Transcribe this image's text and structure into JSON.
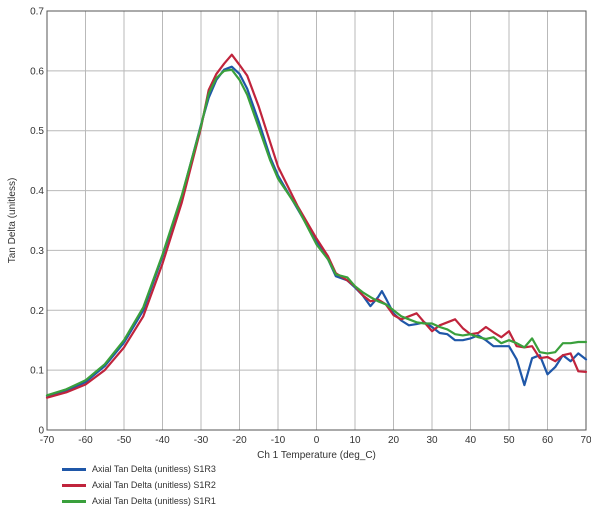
{
  "chart_data": {
    "type": "line",
    "title": "",
    "xlabel": "Ch 1 Temperature (deg_C)",
    "ylabel": "Tan Delta (unitless)",
    "xlim": [
      -70,
      70
    ],
    "ylim": [
      0,
      0.7
    ],
    "x_ticks": [
      "-70",
      "-60",
      "-50",
      "-40",
      "-30",
      "-20",
      "-10",
      "0",
      "10",
      "20",
      "30",
      "40",
      "50",
      "60",
      "70"
    ],
    "y_ticks": [
      "0",
      "0.1",
      "0.2",
      "0.3",
      "0.4",
      "0.5",
      "0.6",
      "0.7"
    ],
    "grid": true,
    "legend_position": "bottom-left",
    "series": [
      {
        "name": "Axial Tan Delta (unitless) S1R3",
        "color": "#1f57a8",
        "points": [
          [
            -70,
            0.057
          ],
          [
            -65,
            0.066
          ],
          [
            -60,
            0.08
          ],
          [
            -55,
            0.107
          ],
          [
            -50,
            0.146
          ],
          [
            -45,
            0.2
          ],
          [
            -40,
            0.29
          ],
          [
            -35,
            0.39
          ],
          [
            -30,
            0.51
          ],
          [
            -28,
            0.555
          ],
          [
            -26,
            0.585
          ],
          [
            -24,
            0.602
          ],
          [
            -22,
            0.607
          ],
          [
            -20,
            0.595
          ],
          [
            -18,
            0.57
          ],
          [
            -15,
            0.515
          ],
          [
            -12,
            0.455
          ],
          [
            -10,
            0.425
          ],
          [
            -5,
            0.37
          ],
          [
            0,
            0.315
          ],
          [
            3,
            0.285
          ],
          [
            5,
            0.257
          ],
          [
            8,
            0.25
          ],
          [
            10,
            0.238
          ],
          [
            12,
            0.225
          ],
          [
            14,
            0.207
          ],
          [
            16,
            0.222
          ],
          [
            17,
            0.232
          ],
          [
            18,
            0.22
          ],
          [
            20,
            0.195
          ],
          [
            22,
            0.183
          ],
          [
            24,
            0.175
          ],
          [
            26,
            0.177
          ],
          [
            28,
            0.18
          ],
          [
            30,
            0.172
          ],
          [
            32,
            0.162
          ],
          [
            34,
            0.16
          ],
          [
            36,
            0.15
          ],
          [
            38,
            0.15
          ],
          [
            40,
            0.153
          ],
          [
            42,
            0.158
          ],
          [
            44,
            0.15
          ],
          [
            46,
            0.14
          ],
          [
            48,
            0.14
          ],
          [
            50,
            0.14
          ],
          [
            52,
            0.118
          ],
          [
            54,
            0.075
          ],
          [
            56,
            0.12
          ],
          [
            58,
            0.125
          ],
          [
            60,
            0.093
          ],
          [
            62,
            0.105
          ],
          [
            64,
            0.125
          ],
          [
            66,
            0.115
          ],
          [
            68,
            0.128
          ],
          [
            70,
            0.118
          ]
        ]
      },
      {
        "name": "Axial Tan Delta (unitless) S1R2",
        "color": "#c0243c",
        "points": [
          [
            -70,
            0.054
          ],
          [
            -65,
            0.063
          ],
          [
            -60,
            0.076
          ],
          [
            -55,
            0.1
          ],
          [
            -50,
            0.138
          ],
          [
            -45,
            0.19
          ],
          [
            -40,
            0.278
          ],
          [
            -35,
            0.38
          ],
          [
            -30,
            0.505
          ],
          [
            -28,
            0.568
          ],
          [
            -26,
            0.595
          ],
          [
            -24,
            0.612
          ],
          [
            -22,
            0.627
          ],
          [
            -20,
            0.61
          ],
          [
            -18,
            0.592
          ],
          [
            -15,
            0.54
          ],
          [
            -12,
            0.48
          ],
          [
            -10,
            0.44
          ],
          [
            -5,
            0.375
          ],
          [
            0,
            0.32
          ],
          [
            3,
            0.29
          ],
          [
            5,
            0.262
          ],
          [
            8,
            0.25
          ],
          [
            10,
            0.24
          ],
          [
            12,
            0.225
          ],
          [
            14,
            0.215
          ],
          [
            16,
            0.218
          ],
          [
            18,
            0.21
          ],
          [
            20,
            0.192
          ],
          [
            22,
            0.185
          ],
          [
            24,
            0.19
          ],
          [
            26,
            0.195
          ],
          [
            28,
            0.18
          ],
          [
            30,
            0.165
          ],
          [
            32,
            0.175
          ],
          [
            34,
            0.18
          ],
          [
            36,
            0.185
          ],
          [
            38,
            0.17
          ],
          [
            40,
            0.16
          ],
          [
            42,
            0.162
          ],
          [
            44,
            0.172
          ],
          [
            46,
            0.163
          ],
          [
            48,
            0.155
          ],
          [
            50,
            0.165
          ],
          [
            52,
            0.14
          ],
          [
            54,
            0.138
          ],
          [
            56,
            0.14
          ],
          [
            58,
            0.12
          ],
          [
            60,
            0.122
          ],
          [
            62,
            0.115
          ],
          [
            64,
            0.125
          ],
          [
            66,
            0.128
          ],
          [
            68,
            0.098
          ],
          [
            70,
            0.097
          ]
        ]
      },
      {
        "name": "Axial Tan Delta (unitless) S1R1",
        "color": "#3aa03c",
        "points": [
          [
            -70,
            0.058
          ],
          [
            -65,
            0.068
          ],
          [
            -60,
            0.083
          ],
          [
            -55,
            0.11
          ],
          [
            -50,
            0.15
          ],
          [
            -45,
            0.205
          ],
          [
            -40,
            0.293
          ],
          [
            -35,
            0.392
          ],
          [
            -30,
            0.508
          ],
          [
            -28,
            0.562
          ],
          [
            -26,
            0.588
          ],
          [
            -24,
            0.6
          ],
          [
            -22,
            0.602
          ],
          [
            -20,
            0.585
          ],
          [
            -18,
            0.56
          ],
          [
            -15,
            0.505
          ],
          [
            -12,
            0.45
          ],
          [
            -10,
            0.42
          ],
          [
            -5,
            0.372
          ],
          [
            0,
            0.31
          ],
          [
            3,
            0.285
          ],
          [
            5,
            0.26
          ],
          [
            8,
            0.255
          ],
          [
            10,
            0.24
          ],
          [
            12,
            0.23
          ],
          [
            14,
            0.222
          ],
          [
            16,
            0.215
          ],
          [
            18,
            0.21
          ],
          [
            20,
            0.2
          ],
          [
            22,
            0.19
          ],
          [
            24,
            0.185
          ],
          [
            26,
            0.18
          ],
          [
            28,
            0.178
          ],
          [
            30,
            0.178
          ],
          [
            32,
            0.172
          ],
          [
            34,
            0.168
          ],
          [
            36,
            0.16
          ],
          [
            38,
            0.158
          ],
          [
            40,
            0.16
          ],
          [
            42,
            0.155
          ],
          [
            44,
            0.152
          ],
          [
            46,
            0.155
          ],
          [
            48,
            0.145
          ],
          [
            50,
            0.15
          ],
          [
            52,
            0.145
          ],
          [
            54,
            0.138
          ],
          [
            56,
            0.153
          ],
          [
            58,
            0.13
          ],
          [
            60,
            0.128
          ],
          [
            62,
            0.13
          ],
          [
            64,
            0.145
          ],
          [
            66,
            0.145
          ],
          [
            68,
            0.147
          ],
          [
            70,
            0.147
          ]
        ]
      }
    ]
  }
}
